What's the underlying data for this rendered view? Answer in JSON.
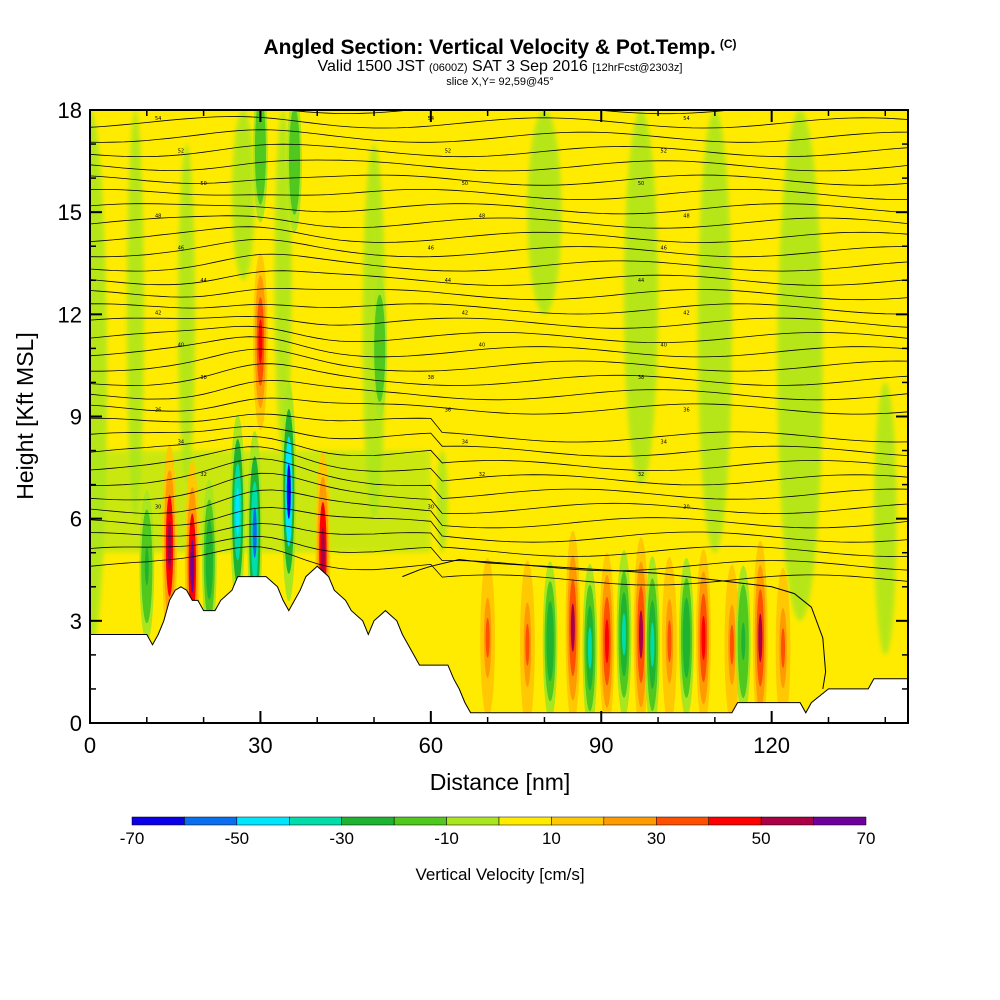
{
  "header": {
    "title": "Angled Section: Vertical Velocity & Pot.Temp.",
    "title_tag": "(C)",
    "line2_a": "Valid 1500 JST",
    "line2_b": "(0600Z)",
    "line2_c": "SAT 3 Sep 2016",
    "line2_d": "[12hrFcst@2303z]",
    "line3": "slice X,Y= 92,59@45°"
  },
  "chart_data": {
    "type": "heatmap",
    "title": "Angled Section: Vertical Velocity & Pot.Temp.",
    "xlabel": "Distance [nm]",
    "ylabel": "Height [Kft MSL]",
    "xlim": [
      0,
      144
    ],
    "ylim": [
      0,
      18
    ],
    "x_ticks": [
      0,
      30,
      60,
      90,
      120
    ],
    "y_ticks": [
      0,
      3,
      6,
      9,
      12,
      15,
      18
    ],
    "colorbar": {
      "label": "Vertical Velocity [cm/s]",
      "levels": [
        -70,
        -60,
        -50,
        -40,
        -30,
        -20,
        -10,
        0,
        10,
        20,
        30,
        40,
        50,
        60,
        70
      ],
      "tick_labels": [
        "-70",
        "-50",
        "-30",
        "-10",
        "10",
        "30",
        "50",
        "70"
      ],
      "colors": [
        "#0a00e8",
        "#0a6ef0",
        "#00e6ff",
        "#00dcaa",
        "#1eb432",
        "#50c81e",
        "#aae61e",
        "#ffeb00",
        "#ffc800",
        "#ff9b00",
        "#ff5000",
        "#ff0000",
        "#aa0046",
        "#6e009b"
      ]
    },
    "background_color": "#ffeb00",
    "terrain_kft": [
      [
        0,
        2.6
      ],
      [
        5,
        2.6
      ],
      [
        10,
        2.6
      ],
      [
        11,
        2.3
      ],
      [
        12,
        2.6
      ],
      [
        13,
        3.0
      ],
      [
        14,
        3.6
      ],
      [
        15,
        3.9
      ],
      [
        16,
        4.0
      ],
      [
        17,
        3.9
      ],
      [
        18,
        3.6
      ],
      [
        19,
        3.6
      ],
      [
        20,
        3.3
      ],
      [
        22,
        3.3
      ],
      [
        23,
        3.6
      ],
      [
        25,
        3.9
      ],
      [
        26,
        4.3
      ],
      [
        28,
        4.3
      ],
      [
        31,
        4.3
      ],
      [
        33,
        4.0
      ],
      [
        34,
        3.6
      ],
      [
        35,
        3.3
      ],
      [
        36,
        3.6
      ],
      [
        37,
        3.9
      ],
      [
        38,
        4.3
      ],
      [
        40,
        4.6
      ],
      [
        42,
        4.3
      ],
      [
        43,
        3.9
      ],
      [
        45,
        3.6
      ],
      [
        46,
        3.3
      ],
      [
        48,
        3.0
      ],
      [
        49,
        2.6
      ],
      [
        50,
        3.0
      ],
      [
        52,
        3.3
      ],
      [
        54,
        3.0
      ],
      [
        55,
        2.6
      ],
      [
        57,
        2.0
      ],
      [
        58,
        1.7
      ],
      [
        60,
        1.7
      ],
      [
        63,
        1.7
      ],
      [
        64,
        1.3
      ],
      [
        65,
        1.0
      ],
      [
        66,
        0.6
      ],
      [
        67,
        0.3
      ],
      [
        75,
        0.3
      ],
      [
        90,
        0.3
      ],
      [
        105,
        0.3
      ],
      [
        113,
        0.3
      ],
      [
        114,
        0.6
      ],
      [
        120,
        0.6
      ],
      [
        125,
        0.6
      ],
      [
        126,
        0.3
      ],
      [
        127,
        0.6
      ],
      [
        130,
        1.0
      ],
      [
        137,
        1.0
      ],
      [
        138,
        1.3
      ],
      [
        144,
        1.3
      ]
    ],
    "flat_region_top_kft": [
      [
        55,
        4.3
      ],
      [
        58,
        4.5
      ],
      [
        60,
        4.6
      ],
      [
        65,
        4.8
      ],
      [
        70,
        4.7
      ],
      [
        80,
        4.6
      ],
      [
        90,
        4.5
      ],
      [
        100,
        4.4
      ],
      [
        110,
        4.2
      ],
      [
        115,
        4.1
      ],
      [
        120,
        4.0
      ],
      [
        124,
        3.8
      ],
      [
        127,
        3.4
      ],
      [
        129,
        2.5
      ],
      [
        129.5,
        1.5
      ],
      [
        129,
        1.0
      ]
    ],
    "updraft_cells": [
      {
        "x": 14,
        "z": 5.2,
        "w": 55
      },
      {
        "x": 18,
        "z": 4.6,
        "w": 60
      },
      {
        "x": 30,
        "z": 11.2,
        "w": 40
      },
      {
        "x": 41,
        "z": 5.0,
        "w": 55
      },
      {
        "x": 70,
        "z": 2.5,
        "w": 30
      },
      {
        "x": 77,
        "z": 2.3,
        "w": 35
      },
      {
        "x": 85,
        "z": 2.8,
        "w": 50
      },
      {
        "x": 91,
        "z": 2.4,
        "w": 40
      },
      {
        "x": 97,
        "z": 2.6,
        "w": 50
      },
      {
        "x": 102,
        "z": 2.4,
        "w": 35
      },
      {
        "x": 108,
        "z": 2.5,
        "w": 40
      },
      {
        "x": 113,
        "z": 2.3,
        "w": 30
      },
      {
        "x": 118,
        "z": 2.5,
        "w": 50
      },
      {
        "x": 122,
        "z": 2.2,
        "w": 30
      }
    ],
    "downdraft_cells": [
      {
        "x": 10,
        "z": 4.6,
        "w": -25
      },
      {
        "x": 21,
        "z": 4.8,
        "w": -30
      },
      {
        "x": 26,
        "z": 6.2,
        "w": -50
      },
      {
        "x": 29,
        "z": 5.6,
        "w": -55
      },
      {
        "x": 35,
        "z": 6.8,
        "w": -65
      },
      {
        "x": 36,
        "z": 16.5,
        "w": -20
      },
      {
        "x": 30,
        "z": 16.8,
        "w": -20
      },
      {
        "x": 51,
        "z": 11.0,
        "w": -20
      },
      {
        "x": 81,
        "z": 2.4,
        "w": -30
      },
      {
        "x": 88,
        "z": 2.2,
        "w": -35
      },
      {
        "x": 94,
        "z": 2.6,
        "w": -35
      },
      {
        "x": 99,
        "z": 2.3,
        "w": -40
      },
      {
        "x": 105,
        "z": 2.5,
        "w": -30
      },
      {
        "x": 115,
        "z": 2.4,
        "w": -25
      }
    ],
    "theta_labels": [
      "54",
      "52",
      "50",
      "48",
      "46",
      "44",
      "42",
      "40",
      "38",
      "36",
      "34",
      "32",
      "30"
    ]
  }
}
